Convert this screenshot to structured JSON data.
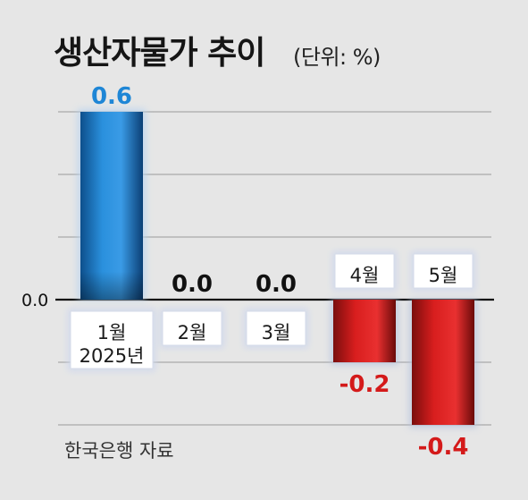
{
  "title": "생산자물가 추이",
  "unit_note": "(단위: %)",
  "source": "한국은행 자료",
  "colors": {
    "positive": "#1e86d6",
    "negative": "#d41a1a",
    "zero_label": "#111111",
    "background": "#e6e6e6",
    "grid": "#a9a9a9"
  },
  "chart_data": {
    "type": "bar",
    "categories": [
      "1월\n2025년",
      "2월",
      "3월",
      "4월",
      "5월"
    ],
    "values": [
      0.6,
      0.0,
      0.0,
      -0.2,
      -0.4
    ],
    "value_labels": [
      "0.6",
      "0.0",
      "0.0",
      "-0.2",
      "-0.4"
    ],
    "y_tick_labels": [
      {
        "value": 0,
        "label": "0.0"
      }
    ],
    "ylim": [
      -0.4,
      0.6
    ],
    "gridlines": [
      0.6,
      0.4,
      0.2,
      0.0,
      -0.2,
      -0.4
    ],
    "grid": true,
    "legend": "none"
  }
}
